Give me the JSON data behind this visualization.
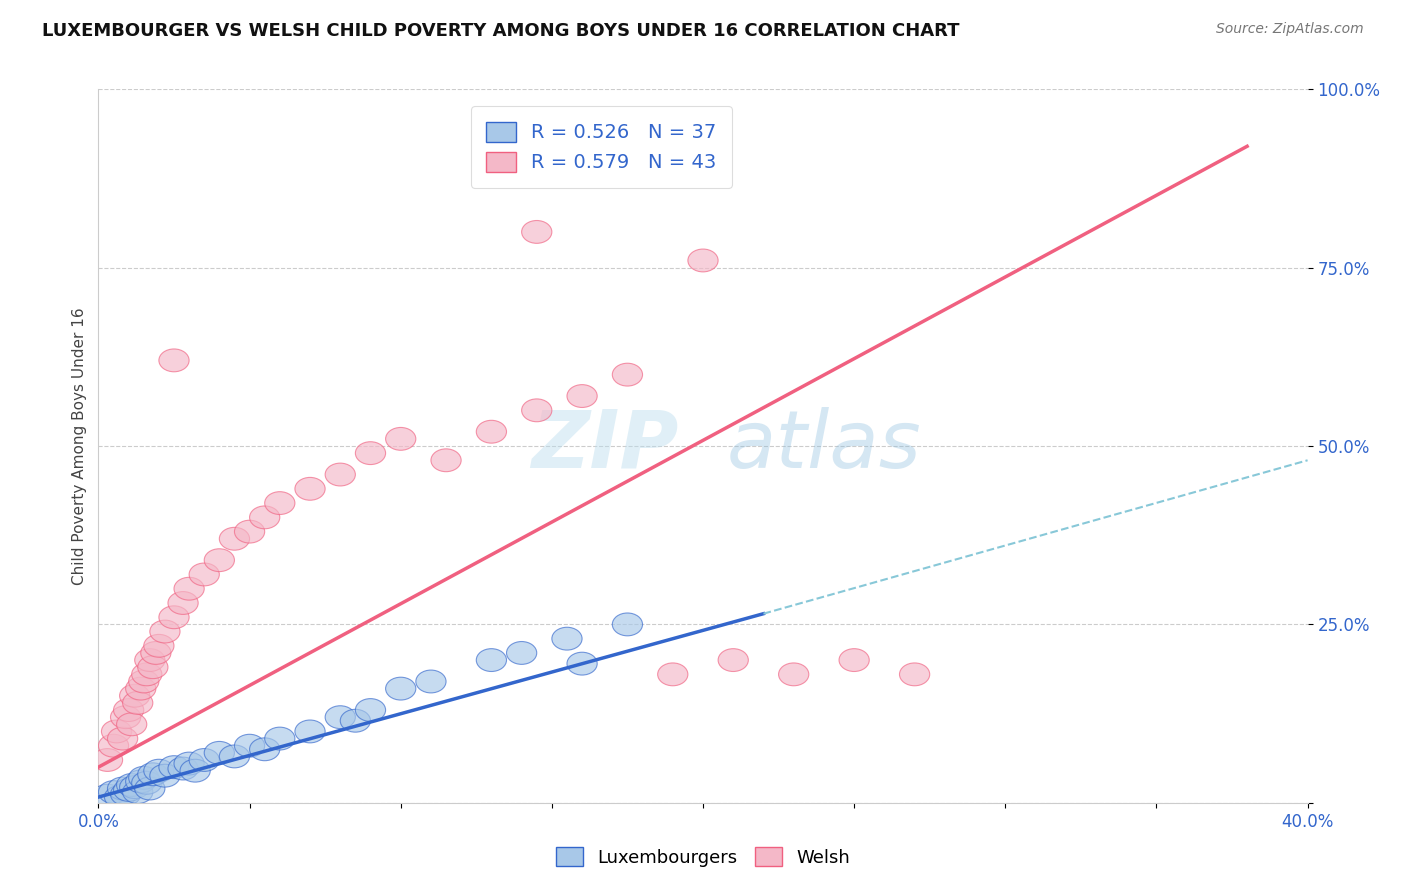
{
  "title": "LUXEMBOURGER VS WELSH CHILD POVERTY AMONG BOYS UNDER 16 CORRELATION CHART",
  "source": "Source: ZipAtlas.com",
  "ylabel": "Child Poverty Among Boys Under 16",
  "xlim": [
    0.0,
    0.4
  ],
  "ylim": [
    0.0,
    1.0
  ],
  "legend_lux": "R = 0.526   N = 37",
  "legend_welsh": "R = 0.579   N = 43",
  "lux_color": "#a8c8e8",
  "welsh_color": "#f4b8c8",
  "lux_line_color": "#3366cc",
  "welsh_line_color": "#f06080",
  "dashed_line_color": "#88c8d8",
  "watermark_text": "ZIPatlas",
  "lux_scatter_x": [
    0.003,
    0.005,
    0.007,
    0.008,
    0.009,
    0.01,
    0.011,
    0.012,
    0.013,
    0.014,
    0.015,
    0.016,
    0.017,
    0.018,
    0.02,
    0.022,
    0.025,
    0.028,
    0.03,
    0.032,
    0.035,
    0.04,
    0.045,
    0.05,
    0.055,
    0.06,
    0.07,
    0.08,
    0.085,
    0.09,
    0.1,
    0.11,
    0.13,
    0.14,
    0.155,
    0.16,
    0.175
  ],
  "lux_scatter_y": [
    0.01,
    0.015,
    0.008,
    0.02,
    0.012,
    0.018,
    0.025,
    0.022,
    0.015,
    0.03,
    0.035,
    0.028,
    0.02,
    0.04,
    0.045,
    0.038,
    0.05,
    0.048,
    0.055,
    0.045,
    0.06,
    0.07,
    0.065,
    0.08,
    0.075,
    0.09,
    0.1,
    0.12,
    0.115,
    0.13,
    0.16,
    0.17,
    0.2,
    0.21,
    0.23,
    0.195,
    0.25
  ],
  "welsh_scatter_x": [
    0.003,
    0.005,
    0.006,
    0.008,
    0.009,
    0.01,
    0.011,
    0.012,
    0.013,
    0.014,
    0.015,
    0.016,
    0.017,
    0.018,
    0.019,
    0.02,
    0.022,
    0.025,
    0.028,
    0.03,
    0.035,
    0.04,
    0.045,
    0.05,
    0.055,
    0.06,
    0.07,
    0.08,
    0.09,
    0.1,
    0.115,
    0.13,
    0.145,
    0.16,
    0.175,
    0.19,
    0.21,
    0.23,
    0.25,
    0.27,
    0.145,
    0.2,
    0.025
  ],
  "welsh_scatter_y": [
    0.06,
    0.08,
    0.1,
    0.09,
    0.12,
    0.13,
    0.11,
    0.15,
    0.14,
    0.16,
    0.17,
    0.18,
    0.2,
    0.19,
    0.21,
    0.22,
    0.24,
    0.26,
    0.28,
    0.3,
    0.32,
    0.34,
    0.37,
    0.38,
    0.4,
    0.42,
    0.44,
    0.46,
    0.49,
    0.51,
    0.48,
    0.52,
    0.55,
    0.57,
    0.6,
    0.18,
    0.2,
    0.18,
    0.2,
    0.18,
    0.8,
    0.76,
    0.62
  ],
  "lux_regline_x": [
    0.0,
    0.22
  ],
  "lux_regline_y": [
    0.008,
    0.265
  ],
  "welsh_regline_x": [
    0.0,
    0.38
  ],
  "welsh_regline_y": [
    0.05,
    0.92
  ],
  "dashed_line_x": [
    0.22,
    0.4
  ],
  "dashed_line_y": [
    0.265,
    0.48
  ]
}
